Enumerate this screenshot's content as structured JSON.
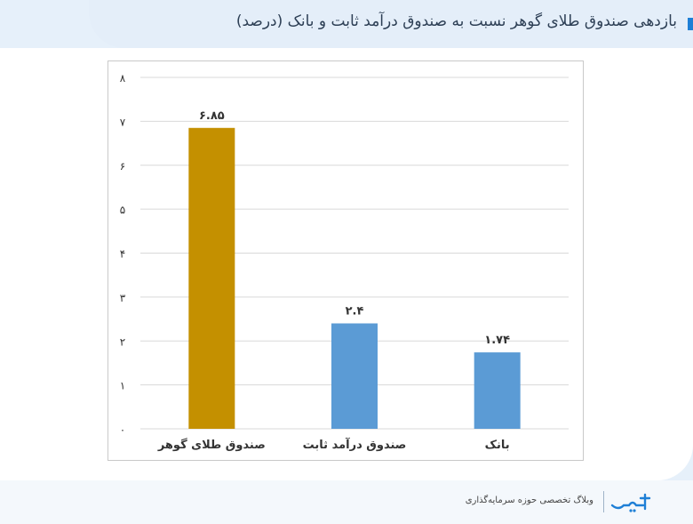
{
  "title": "بازدهی صندوق طلای گوهر نسبت به صندوق درآمد ثابت و بانک (درصد)",
  "footer": {
    "tagline": "وبلاگ تخصصی حوزه سرمایه‌گذاری"
  },
  "colors": {
    "gold": "#c49000",
    "blue": "#5b9bd5",
    "accent": "#1e7fd6"
  },
  "chart_data": {
    "type": "bar",
    "categories": [
      "صندوق طلای گوهر",
      "صندوق درآمد ثابت",
      "بانک"
    ],
    "values": [
      6.85,
      2.4,
      1.74
    ],
    "value_labels": [
      "۶.۸۵",
      "۲.۴",
      "۱.۷۴"
    ],
    "bar_colors": [
      "#c49000",
      "#5b9bd5",
      "#5b9bd5"
    ],
    "yticks": [
      0,
      1,
      2,
      3,
      4,
      5,
      6,
      7,
      8
    ],
    "ytick_labels": [
      "۰",
      "۱",
      "۲",
      "۳",
      "۴",
      "۵",
      "۶",
      "۷",
      "۸"
    ],
    "ylim": [
      0,
      8
    ],
    "grid": true,
    "xlabel": "",
    "ylabel": ""
  }
}
